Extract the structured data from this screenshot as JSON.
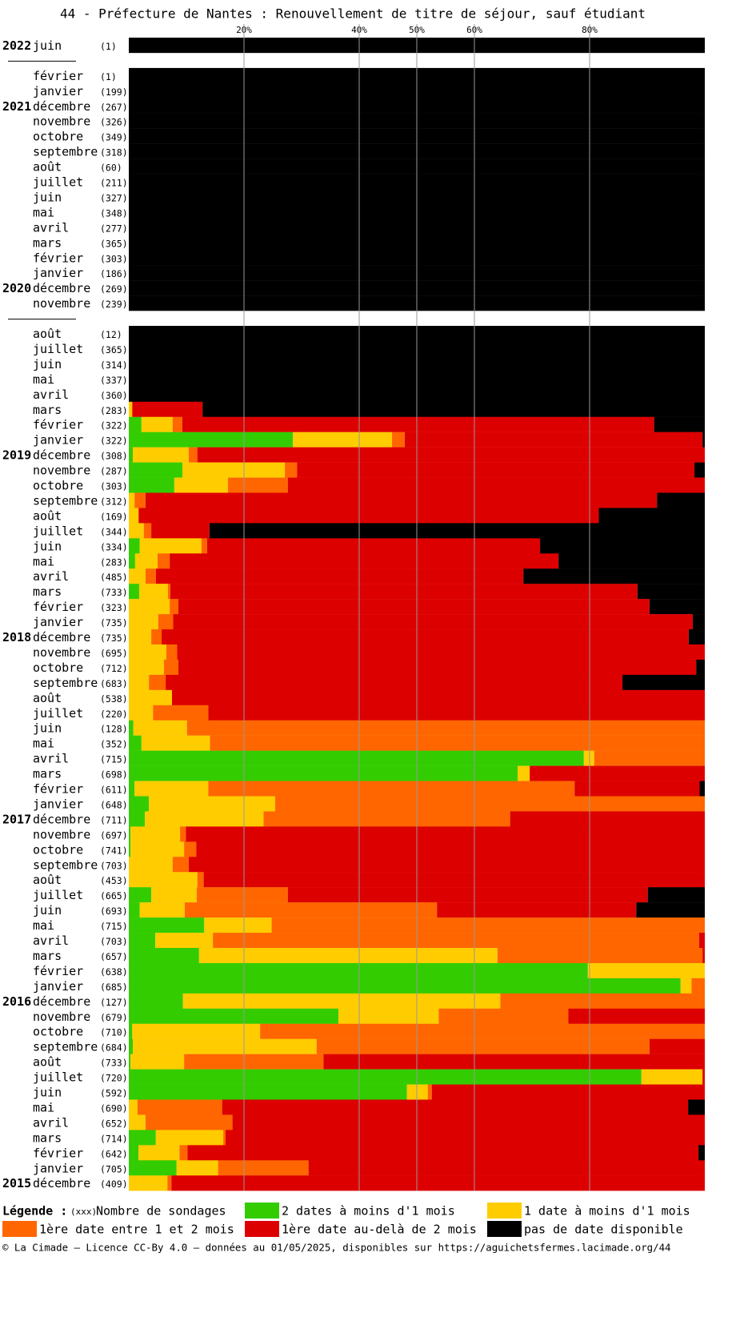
{
  "chart_data": {
    "type": "stacked-hbar",
    "title": "44 - Préfecture de Nantes : Renouvellement de titre de séjour, sauf étudiant",
    "categories": [
      "juin",
      null,
      "février",
      "janvier",
      "décembre",
      "novembre",
      "octobre",
      "septembre",
      "août",
      "juillet",
      "juin",
      "mai",
      "avril",
      "mars",
      "février",
      "janvier",
      "décembre",
      "novembre",
      null,
      "août",
      "juillet",
      "juin",
      "mai",
      "avril",
      "mars",
      "février",
      "janvier",
      "décembre",
      "novembre",
      "octobre",
      "septembre",
      "août",
      "juillet",
      "juin",
      "mai",
      "avril",
      "mars",
      "février",
      "janvier",
      "décembre",
      "novembre",
      "octobre",
      "septembre",
      "août",
      "juillet",
      "juin",
      "mai",
      "avril",
      "mars",
      "février",
      "janvier",
      "décembre",
      "novembre",
      "octobre",
      "septembre",
      "août",
      "juillet",
      "juin",
      "mai",
      "avril",
      "mars",
      "février",
      "janvier",
      "décembre",
      "novembre",
      "octobre",
      "septembre",
      "août",
      "juillet",
      "juin",
      "mai",
      "avril",
      "mars",
      "février",
      "janvier",
      "décembre"
    ],
    "years": [
      "2022",
      null,
      null,
      null,
      "2021",
      null,
      null,
      null,
      null,
      null,
      null,
      null,
      null,
      null,
      null,
      null,
      "2020",
      null,
      null,
      null,
      null,
      null,
      null,
      null,
      null,
      null,
      null,
      "2019",
      null,
      null,
      null,
      null,
      null,
      null,
      null,
      null,
      null,
      null,
      null,
      "2018",
      null,
      null,
      null,
      null,
      null,
      null,
      null,
      null,
      null,
      null,
      null,
      "2017",
      null,
      null,
      null,
      null,
      null,
      null,
      null,
      null,
      null,
      null,
      null,
      "2016",
      null,
      null,
      null,
      null,
      null,
      null,
      null,
      null,
      null,
      null,
      null,
      "2015"
    ],
    "count_labels": [
      "(1)",
      null,
      "(1)",
      "(199)",
      "(267)",
      "(326)",
      "(349)",
      "(318)",
      "(60)",
      "(211)",
      "(327)",
      "(348)",
      "(277)",
      "(365)",
      "(303)",
      "(186)",
      "(269)",
      "(239)",
      null,
      "(12)",
      "(365)",
      "(314)",
      "(337)",
      "(360)",
      "(283)",
      "(322)",
      "(322)",
      "(308)",
      "(287)",
      "(303)",
      "(312)",
      "(169)",
      "(344)",
      "(334)",
      "(283)",
      "(485)",
      "(733)",
      "(323)",
      "(735)",
      "(735)",
      "(695)",
      "(712)",
      "(683)",
      "(538)",
      "(220)",
      "(128)",
      "(352)",
      "(715)",
      "(698)",
      "(611)",
      "(648)",
      "(711)",
      "(697)",
      "(741)",
      "(703)",
      "(453)",
      "(665)",
      "(693)",
      "(715)",
      "(703)",
      "(657)",
      "(638)",
      "(685)",
      "(127)",
      "(679)",
      "(710)",
      "(684)",
      "(733)",
      "(720)",
      "(592)",
      "(690)",
      "(652)",
      "(714)",
      "(642)",
      "(705)",
      "(409)"
    ],
    "xlim": [
      0,
      100
    ],
    "xticks": [
      {
        "value": 20,
        "label": "20%"
      },
      {
        "value": 40,
        "label": "40%"
      },
      {
        "value": 50,
        "label": "50%"
      },
      {
        "value": 60,
        "label": "60%"
      },
      {
        "value": 80,
        "label": "80%"
      }
    ],
    "grid": true,
    "series": [
      {
        "name": "2 dates à moins d'1 mois",
        "color": "#33cc00",
        "values": [
          0,
          null,
          0,
          0,
          0,
          0,
          0,
          0,
          0,
          0,
          0,
          0,
          0,
          0,
          0,
          0,
          0,
          0,
          null,
          0,
          0,
          0,
          0,
          0,
          0,
          2.2,
          28.5,
          0.7,
          9.3,
          7.9,
          0,
          0,
          0,
          1.9,
          1.1,
          0,
          1.8,
          0,
          0,
          0,
          0,
          0,
          0,
          0,
          0,
          0.8,
          2.2,
          79,
          67.5,
          1,
          3.5,
          2.8,
          0.3,
          0.3,
          0,
          0,
          3.9,
          1.9,
          13.1,
          4.6,
          12.2,
          79.7,
          95.8,
          9.4,
          36.4,
          0.6,
          0.7,
          0.3,
          89,
          48.3,
          0,
          0,
          4.7,
          1.7,
          8.3,
          0
        ]
      },
      {
        "name": "1 date à moins d'1 mois",
        "color": "#ffcc00",
        "values": [
          0,
          null,
          0,
          0,
          0,
          0,
          0,
          0,
          0,
          0,
          0,
          0,
          0,
          0,
          0,
          0,
          0,
          0,
          null,
          0,
          0,
          0,
          0,
          0,
          0.6,
          5.4,
          17.2,
          9.7,
          17.8,
          9.3,
          1,
          1.7,
          2.6,
          10.7,
          3.9,
          2.9,
          5,
          7.1,
          5.1,
          3.9,
          6.5,
          6.1,
          3.5,
          7.5,
          4.2,
          9.3,
          11.9,
          1.8,
          2.1,
          12.8,
          21.9,
          20.6,
          8.6,
          9.3,
          7.6,
          11.9,
          7.9,
          7.8,
          11.7,
          10,
          51.8,
          20.3,
          1.9,
          55.1,
          17.4,
          22.2,
          31.9,
          9.3,
          10.6,
          3.6,
          1.5,
          2.9,
          11.7,
          7.1,
          7.2,
          6.7
        ]
      },
      {
        "name": "1ère date entre 1 et 2 mois",
        "color": "#ff6600",
        "values": [
          0,
          null,
          0,
          0,
          0,
          0,
          0,
          0,
          0,
          0,
          0,
          0,
          0,
          0,
          0,
          0,
          0,
          0,
          null,
          0,
          0,
          0,
          0,
          0,
          0,
          1.7,
          2.2,
          1.5,
          2.1,
          10.4,
          1.9,
          0,
          1.3,
          1,
          2.1,
          1.8,
          0.4,
          1.5,
          2.6,
          1.8,
          1.9,
          2.5,
          2.9,
          0,
          9.6,
          89.9,
          85.9,
          19.2,
          0,
          63.6,
          74.6,
          42.8,
          1,
          2.1,
          2.8,
          1.1,
          15.8,
          43.8,
          75.2,
          84.4,
          35.6,
          0,
          2.3,
          35.5,
          22.5,
          77.2,
          57.8,
          24.2,
          0,
          0.7,
          14.7,
          15.1,
          0.4,
          1.4,
          15.7,
          0.7
        ]
      },
      {
        "name": "1ère date au-delà de 2 mois",
        "color": "#dd0000",
        "values": [
          0,
          null,
          0,
          0,
          0,
          0,
          0,
          0,
          0,
          0,
          0,
          0,
          0,
          0,
          0,
          0,
          0,
          0,
          null,
          0,
          0,
          0,
          0,
          0,
          12.2,
          81.9,
          51.7,
          88.1,
          69,
          72.4,
          88.8,
          79.9,
          10.1,
          57.8,
          67.5,
          63.8,
          81.1,
          81.8,
          90.2,
          91.5,
          91.6,
          89.9,
          79.3,
          92.5,
          86.2,
          0,
          0,
          0,
          30.4,
          21.7,
          0,
          33.8,
          90.1,
          88.3,
          89.6,
          87,
          62.5,
          34.6,
          0,
          1,
          0.4,
          0,
          0,
          0,
          23.7,
          0,
          9.6,
          66.2,
          0.4,
          47.4,
          80.9,
          82,
          83.2,
          88.7,
          68.8,
          92.6
        ]
      },
      {
        "name": "pas de date disponible",
        "color": "#000000",
        "values": [
          100,
          null,
          100,
          100,
          100,
          100,
          100,
          100,
          100,
          100,
          100,
          100,
          100,
          100,
          100,
          100,
          100,
          100,
          null,
          100,
          100,
          100,
          100,
          100,
          87.2,
          8.8,
          0.4,
          0,
          1.8,
          0,
          8.3,
          18.4,
          86,
          28.6,
          25.4,
          31.5,
          11.7,
          9.6,
          2.1,
          2.8,
          0,
          1.5,
          14.3,
          0,
          0,
          0,
          0,
          0,
          0,
          0.9,
          0,
          0,
          0,
          0,
          0,
          0,
          9.9,
          11.9,
          0,
          0,
          0,
          0,
          0,
          0,
          0,
          0,
          0,
          0,
          0,
          0,
          2.9,
          0,
          0,
          1.1,
          0,
          0
        ]
      }
    ],
    "legend_title": "Légende :",
    "count_legend_sample": "(xxx)",
    "count_legend_text": "Nombre de sondages"
  },
  "footer": "© La Cimade — Licence CC-By 4.0 — données au 01/05/2025, disponibles sur https://aguichetsfermes.lacimade.org/44"
}
